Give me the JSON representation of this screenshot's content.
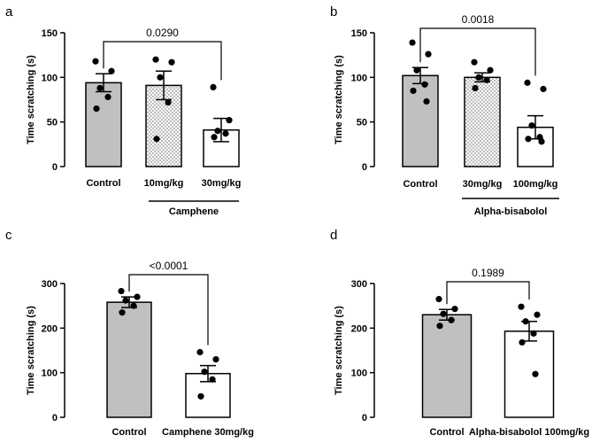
{
  "colors": {
    "control_fill": "#c0c0c0",
    "bar_stroke": "#000000",
    "background": "#ffffff"
  },
  "chart_data": [
    {
      "panel": "a",
      "type": "bar",
      "ylabel": "Time scratching (s)",
      "ylim": [
        0,
        150
      ],
      "yticks": [
        0,
        50,
        100,
        150
      ],
      "categories": [
        "Control",
        "10mg/kg",
        "30mg/kg"
      ],
      "group_label": "Camphene",
      "fills": [
        "gray",
        "dots",
        "white"
      ],
      "means": [
        94,
        91,
        41
      ],
      "sem": [
        10,
        16,
        13
      ],
      "points": [
        [
          118,
          107,
          88,
          78,
          65
        ],
        [
          120,
          117,
          100,
          72,
          31
        ],
        [
          89,
          52,
          40,
          37,
          33
        ]
      ],
      "comparison": {
        "from": 0,
        "to": 2,
        "pvalue": "0.0290"
      }
    },
    {
      "panel": "b",
      "type": "bar",
      "ylabel": "Time scratching (s)",
      "ylim": [
        0,
        150
      ],
      "yticks": [
        0,
        50,
        100,
        150
      ],
      "categories": [
        "Control",
        "30mg/kg",
        "100mg/kg"
      ],
      "group_label": "Alpha-bisabolol",
      "fills": [
        "gray",
        "dots",
        "white"
      ],
      "means": [
        102,
        100,
        44
      ],
      "sem": [
        9,
        5,
        13
      ],
      "points": [
        [
          139,
          126,
          108,
          92,
          85,
          73
        ],
        [
          117,
          108,
          100,
          97,
          88
        ],
        [
          94,
          87,
          46,
          33,
          31,
          28
        ]
      ],
      "comparison": {
        "from": 0,
        "to": 2,
        "pvalue": "0.0018"
      }
    },
    {
      "panel": "c",
      "type": "bar",
      "ylabel": "Time scratching (s)",
      "ylim": [
        0,
        300
      ],
      "yticks": [
        0,
        100,
        200,
        300
      ],
      "categories": [
        "Control",
        "Camphene 30mg/kg"
      ],
      "fills": [
        "gray",
        "white"
      ],
      "means": [
        258,
        98
      ],
      "sem": [
        12,
        18
      ],
      "points": [
        [
          283,
          270,
          262,
          250,
          235
        ],
        [
          146,
          130,
          102,
          85,
          47
        ]
      ],
      "comparison": {
        "from": 0,
        "to": 1,
        "pvalue": "<0.0001"
      }
    },
    {
      "panel": "d",
      "type": "bar",
      "ylabel": "Time scratching (s)",
      "ylim": [
        0,
        300
      ],
      "yticks": [
        0,
        100,
        200,
        300
      ],
      "categories": [
        "Control",
        "Alpha-bisabolol 100mg/kg"
      ],
      "fills": [
        "gray",
        "white"
      ],
      "means": [
        230,
        193
      ],
      "sem": [
        12,
        22
      ],
      "points": [
        [
          265,
          243,
          232,
          218,
          205
        ],
        [
          248,
          230,
          215,
          188,
          168,
          97
        ]
      ],
      "comparison": {
        "from": 0,
        "to": 1,
        "pvalue": "0.1989"
      }
    }
  ]
}
